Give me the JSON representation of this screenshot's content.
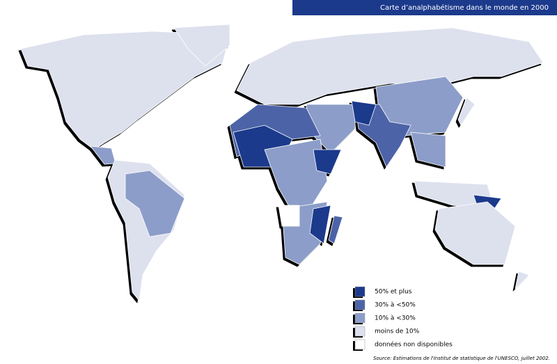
{
  "header": {
    "title": "Carte d’analphabétisme dans le monde en 2000"
  },
  "legend": {
    "items": [
      {
        "label": "50% et plus",
        "color": "#1c3a8c"
      },
      {
        "label": "30% à <50%",
        "color": "#4d63a8"
      },
      {
        "label": "10% à <30%",
        "color": "#8c9dc9"
      },
      {
        "label": "moins de 10%",
        "color": "#dde1ee"
      },
      {
        "label": "données non disponibles",
        "color": "#ffffff"
      }
    ]
  },
  "source": "Source:  Estimations de l'Institut de statistique de l'UNESCO, juillet 2002."
}
